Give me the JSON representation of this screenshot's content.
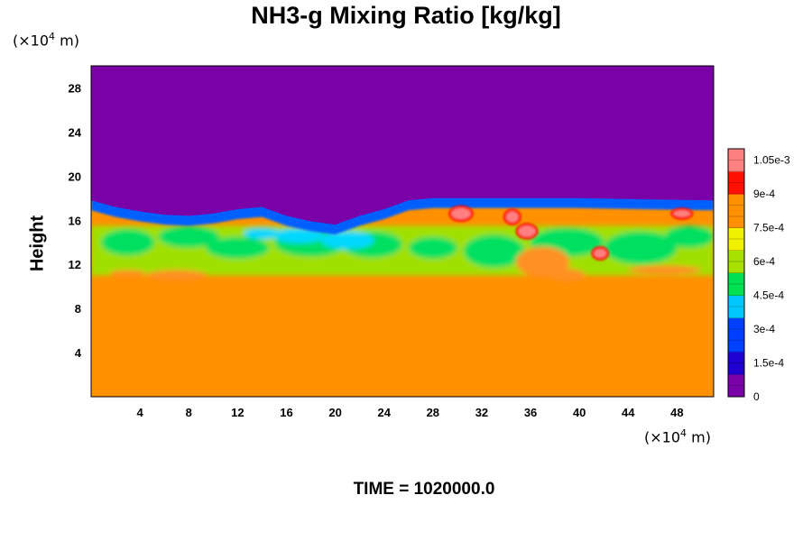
{
  "chart_data": {
    "type": "heatmap",
    "title": "NH3-g Mixing Ratio [kg/kg]",
    "ylabel": "Height",
    "xlabel": "",
    "x_unit": {
      "prefix": "(×10",
      "exp": "4",
      "suffix": " m)"
    },
    "y_unit": {
      "prefix": "(×10",
      "exp": "4",
      "suffix": " m)"
    },
    "xlim": [
      0,
      51
    ],
    "ylim": [
      0,
      30
    ],
    "x_ticks": [
      "4",
      "8",
      "12",
      "16",
      "20",
      "24",
      "28",
      "32",
      "36",
      "40",
      "44",
      "48"
    ],
    "x_tick_values": [
      4,
      8,
      12,
      16,
      20,
      24,
      28,
      32,
      36,
      40,
      44,
      48
    ],
    "y_ticks": [
      "4",
      "8",
      "12",
      "16",
      "20",
      "24",
      "28"
    ],
    "y_tick_values": [
      4,
      8,
      12,
      16,
      20,
      24,
      28
    ],
    "colorbar": {
      "min": 0,
      "max": 0.0011,
      "tick_labels": [
        "0",
        "1.5e-4",
        "3e-4",
        "4.5e-4",
        "6e-4",
        "7.5e-4",
        "9e-4",
        "1.05e-3"
      ],
      "tick_values": [
        0,
        0.00015,
        0.0003,
        0.00045,
        0.0006,
        0.00075,
        0.0009,
        0.00105
      ],
      "colors": [
        "#7a00a8",
        "#2000d0",
        "#0040ff",
        "#00c8ff",
        "#00e050",
        "#a8e000",
        "#f0f000",
        "#ff9000",
        "#ff1000",
        "#ff8080"
      ]
    },
    "regions": {
      "upper_value": 0,
      "lower_value": 0.00078,
      "interface_height": [
        17.8,
        17.2,
        16.8,
        16.5,
        16.4,
        16.6,
        17.0,
        17.2,
        16.4,
        15.9,
        15.6,
        16.4,
        17.0,
        17.8,
        18.0,
        18.0,
        18.0,
        18.0,
        17.9,
        17.8
      ],
      "interface_x": [
        0,
        2,
        4,
        6,
        8,
        10,
        12,
        14,
        16,
        18,
        20,
        22,
        24,
        26,
        28,
        30,
        35,
        40,
        45,
        51
      ]
    },
    "annotation": "TIME = 1020000.0"
  }
}
